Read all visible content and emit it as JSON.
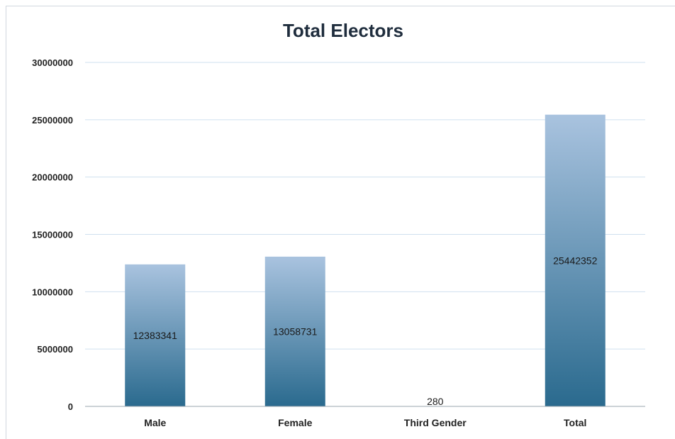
{
  "chart_data": {
    "type": "bar",
    "title": "Total Electors",
    "categories": [
      "Male",
      "Female",
      "Third Gender",
      "Total"
    ],
    "values": [
      12383341,
      13058731,
      280,
      25442352
    ],
    "data_labels": [
      "12383341",
      "13058731",
      "280",
      "25442352"
    ],
    "ylim": [
      0,
      30000000
    ],
    "yticks": [
      0,
      5000000,
      10000000,
      15000000,
      20000000,
      25000000,
      30000000
    ],
    "ytick_labels": [
      "0",
      "5000000",
      "10000000",
      "15000000",
      "20000000",
      "25000000",
      "30000000"
    ],
    "xlabel": "",
    "ylabel": "",
    "grid": true,
    "legend": "none",
    "colors": {
      "bar_top": "#a9c3df",
      "bar_bottom": "#2a6a8e",
      "grid": "#cfe0ef",
      "axis": "#9aa4ad"
    }
  }
}
